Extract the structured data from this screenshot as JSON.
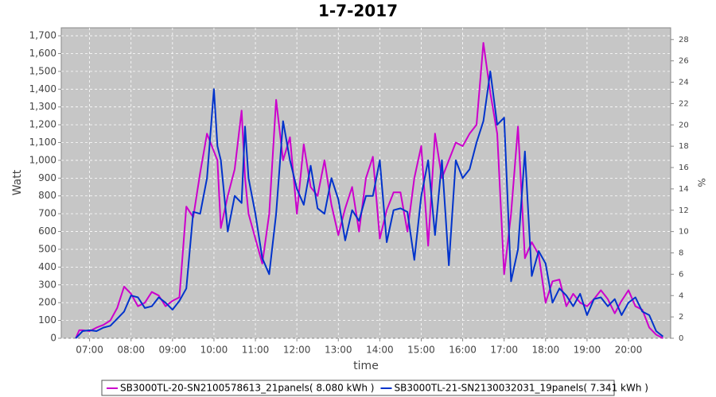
{
  "chart_data": {
    "type": "line",
    "title": "1-7-2017",
    "x_label": "time",
    "y_label": "Watt",
    "y2_label": "%",
    "x": [
      "06:40",
      "06:45",
      "06:50",
      "07:00",
      "07:10",
      "07:20",
      "07:30",
      "07:40",
      "07:50",
      "08:00",
      "08:10",
      "08:20",
      "08:30",
      "08:40",
      "08:50",
      "09:00",
      "09:10",
      "09:20",
      "09:30",
      "09:40",
      "09:50",
      "10:00",
      "10:05",
      "10:10",
      "10:20",
      "10:30",
      "10:40",
      "10:45",
      "10:50",
      "11:00",
      "11:10",
      "11:20",
      "11:30",
      "11:40",
      "11:50",
      "12:00",
      "12:10",
      "12:20",
      "12:30",
      "12:40",
      "12:50",
      "13:00",
      "13:10",
      "13:20",
      "13:30",
      "13:40",
      "13:50",
      "14:00",
      "14:10",
      "14:20",
      "14:30",
      "14:40",
      "14:50",
      "15:00",
      "15:10",
      "15:20",
      "15:30",
      "15:40",
      "15:50",
      "16:00",
      "16:10",
      "16:20",
      "16:30",
      "16:40",
      "16:50",
      "17:00",
      "17:10",
      "17:20",
      "17:30",
      "17:40",
      "17:50",
      "18:00",
      "18:10",
      "18:20",
      "18:30",
      "18:40",
      "18:50",
      "19:00",
      "19:10",
      "19:20",
      "19:30",
      "19:40",
      "19:50",
      "20:00",
      "20:10",
      "20:20",
      "20:30",
      "20:40",
      "20:50"
    ],
    "series": [
      {
        "name": "SB3000TL-20-SN2100578613_21panels( 8.080 kWh )",
        "color": "#cc00cc",
        "values": [
          0,
          45,
          45,
          40,
          60,
          75,
          100,
          170,
          290,
          250,
          180,
          200,
          260,
          240,
          180,
          210,
          230,
          740,
          680,
          930,
          1150,
          1050,
          1000,
          620,
          800,
          950,
          1280,
          900,
          700,
          560,
          420,
          700,
          1340,
          1000,
          1130,
          700,
          1090,
          850,
          800,
          1000,
          750,
          580,
          730,
          850,
          600,
          900,
          1020,
          560,
          720,
          820,
          820,
          600,
          900,
          1080,
          520,
          1150,
          900,
          1000,
          1100,
          1080,
          1150,
          1200,
          1660,
          1380,
          1150,
          360,
          700,
          1190,
          450,
          540,
          470,
          200,
          320,
          330,
          180,
          250,
          200,
          180,
          220,
          270,
          220,
          140,
          210,
          270,
          180,
          160,
          60,
          20,
          0
        ]
      },
      {
        "name": "SB3000TL-21-SN2130032031_19panels( 7.341 kWh )",
        "color": "#0033cc",
        "values": [
          0,
          20,
          40,
          45,
          40,
          60,
          70,
          110,
          150,
          240,
          230,
          170,
          180,
          230,
          200,
          160,
          210,
          280,
          710,
          700,
          900,
          1400,
          1080,
          1000,
          600,
          800,
          760,
          1190,
          900,
          700,
          450,
          360,
          700,
          1220,
          1000,
          840,
          750,
          970,
          730,
          700,
          900,
          780,
          550,
          720,
          660,
          800,
          800,
          1000,
          540,
          720,
          730,
          710,
          440,
          800,
          1000,
          580,
          1000,
          410,
          1000,
          900,
          950,
          1100,
          1220,
          1500,
          1200,
          1240,
          320,
          500,
          1050,
          350,
          490,
          420,
          200,
          280,
          240,
          180,
          250,
          130,
          220,
          230,
          180,
          220,
          130,
          200,
          230,
          150,
          130,
          40,
          10
        ]
      }
    ],
    "xlim": [
      "06:19",
      "21:01"
    ],
    "xticks": [
      "07:00",
      "08:00",
      "09:00",
      "10:00",
      "11:00",
      "12:00",
      "13:00",
      "14:00",
      "15:00",
      "16:00",
      "17:00",
      "18:00",
      "19:00",
      "20:00"
    ],
    "ylim": [
      0,
      1745
    ],
    "yticks": [
      0,
      100,
      200,
      300,
      400,
      500,
      600,
      700,
      800,
      900,
      {
        "value": 1000,
        "label": "1,000"
      },
      {
        "value": 1100,
        "label": "1,100"
      },
      {
        "value": 1200,
        "label": "1,200"
      },
      {
        "value": 1300,
        "label": "1,300"
      },
      {
        "value": 1400,
        "label": "1,400"
      },
      {
        "value": 1500,
        "label": "1,500"
      },
      {
        "value": 1600,
        "label": "1,600"
      },
      {
        "value": 1700,
        "label": "1,700"
      }
    ],
    "y2lim": [
      0,
      29.1
    ],
    "y2ticks": [
      0,
      2,
      4,
      6,
      8,
      10,
      12,
      14,
      16,
      18,
      20,
      22,
      24,
      26,
      28
    ],
    "grid": true,
    "legend": "bottom"
  }
}
